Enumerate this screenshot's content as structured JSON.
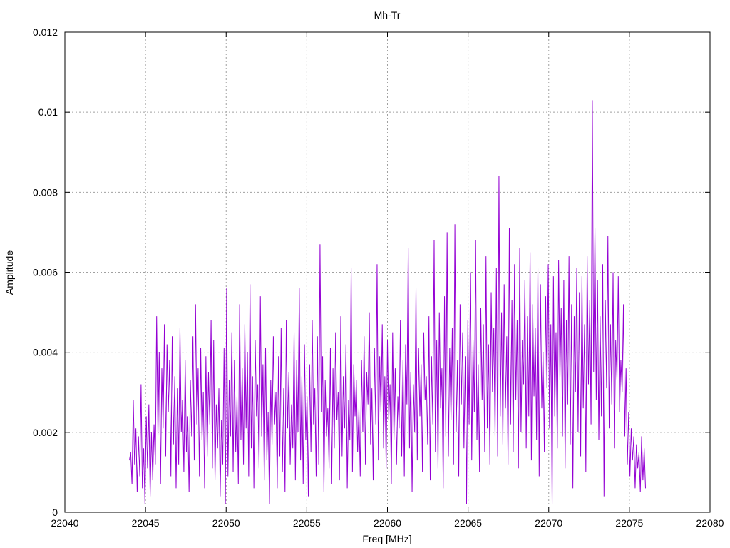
{
  "chart_data": {
    "type": "line",
    "title": "Mh-Tr",
    "xlabel": "Freq [MHz]",
    "ylabel": "Amplitude",
    "xlim": [
      22040,
      22080
    ],
    "ylim": [
      0,
      0.012
    ],
    "grid": true,
    "x_ticks": [
      "22040",
      "22045",
      "22050",
      "22055",
      "22060",
      "22065",
      "22070",
      "22075",
      "22080"
    ],
    "y_ticks": [
      "0",
      "0.002",
      "0.004",
      "0.006",
      "0.008",
      "0.01",
      "0.012"
    ],
    "series": [
      {
        "color": "#9400d3",
        "x_start": 22044.0,
        "x_end": 22076.0,
        "values": [
          0.0013,
          0.0015,
          0.0007,
          0.0028,
          0.0012,
          0.0021,
          0.0005,
          0.0019,
          0.0009,
          0.0032,
          0.0006,
          0.0016,
          0.0002,
          0.0024,
          0.0011,
          0.0027,
          0.0004,
          0.002,
          0.0008,
          0.0022,
          0.0012,
          0.0049,
          0.0019,
          0.004,
          0.0007,
          0.0036,
          0.0021,
          0.0047,
          0.0014,
          0.0042,
          0.0025,
          0.0038,
          0.0009,
          0.0044,
          0.0017,
          0.0034,
          0.0006,
          0.0031,
          0.0012,
          0.0046,
          0.002,
          0.0028,
          0.001,
          0.0038,
          0.0015,
          0.0024,
          0.0005,
          0.0033,
          0.0019,
          0.0044,
          0.0013,
          0.0052,
          0.0022,
          0.0036,
          0.0009,
          0.0041,
          0.0018,
          0.003,
          0.0006,
          0.0039,
          0.0014,
          0.0035,
          0.0022,
          0.0048,
          0.0011,
          0.0043,
          0.0008,
          0.0027,
          0.0016,
          0.0031,
          0.0004,
          0.0023,
          0.0012,
          0.0041,
          0.0002,
          0.0056,
          0.0009,
          0.0033,
          0.0019,
          0.0045,
          0.001,
          0.0038,
          0.0015,
          0.0029,
          0.0007,
          0.0052,
          0.0018,
          0.0036,
          0.0012,
          0.0047,
          0.0021,
          0.004,
          0.0009,
          0.0057,
          0.0016,
          0.0034,
          0.0006,
          0.0043,
          0.0024,
          0.0032,
          0.0011,
          0.0054,
          0.0019,
          0.0037,
          0.0008,
          0.0041,
          0.0013,
          0.0025,
          0.0002,
          0.0033,
          0.0017,
          0.0044,
          0.0022,
          0.003,
          0.0006,
          0.0039,
          0.0014,
          0.0046,
          0.001,
          0.0031,
          0.0005,
          0.0048,
          0.0021,
          0.0035,
          0.0012,
          0.0027,
          0.0016,
          0.0045,
          0.0008,
          0.0038,
          0.002,
          0.0056,
          0.0013,
          0.0034,
          0.0007,
          0.0042,
          0.0018,
          0.0029,
          0.0004,
          0.0037,
          0.0015,
          0.0048,
          0.0022,
          0.0031,
          0.0009,
          0.0044,
          0.0012,
          0.0067,
          0.0025,
          0.0039,
          0.0005,
          0.0033,
          0.0019,
          0.0026,
          0.0011,
          0.0041,
          0.0007,
          0.0036,
          0.0016,
          0.0045,
          0.0023,
          0.003,
          0.0008,
          0.0049,
          0.0014,
          0.0034,
          0.0021,
          0.0042,
          0.0006,
          0.0028,
          0.0018,
          0.0061,
          0.001,
          0.0037,
          0.0024,
          0.0033,
          0.0015,
          0.0026,
          0.0009,
          0.0038,
          0.002,
          0.0044,
          0.0012,
          0.0035,
          0.0027,
          0.005,
          0.0017,
          0.0031,
          0.0008,
          0.0041,
          0.0022,
          0.0062,
          0.0013,
          0.0039,
          0.0025,
          0.0047,
          0.0016,
          0.0034,
          0.0011,
          0.0043,
          0.0023,
          0.0032,
          0.0007,
          0.0045,
          0.0018,
          0.0036,
          0.0012,
          0.0029,
          0.0021,
          0.0048,
          0.0014,
          0.0038,
          0.0009,
          0.0042,
          0.0027,
          0.0066,
          0.0016,
          0.0035,
          0.0005,
          0.0032,
          0.002,
          0.0056,
          0.0013,
          0.0041,
          0.0024,
          0.0037,
          0.001,
          0.0045,
          0.0028,
          0.0034,
          0.0017,
          0.0049,
          0.0008,
          0.0039,
          0.0022,
          0.0068,
          0.0015,
          0.0043,
          0.0011,
          0.005,
          0.0026,
          0.0036,
          0.0006,
          0.0054,
          0.0019,
          0.007,
          0.0014,
          0.0041,
          0.0023,
          0.0046,
          0.0012,
          0.0072,
          0.002,
          0.0038,
          0.0009,
          0.0052,
          0.0027,
          0.0045,
          0.0016,
          0.0039,
          0.0002,
          0.0048,
          0.0022,
          0.006,
          0.0013,
          0.0043,
          0.0025,
          0.0068,
          0.0018,
          0.0037,
          0.001,
          0.0051,
          0.0028,
          0.0047,
          0.0015,
          0.0064,
          0.0021,
          0.0042,
          0.0012,
          0.0055,
          0.003,
          0.0046,
          0.0019,
          0.0061,
          0.0014,
          0.0084,
          0.0024,
          0.005,
          0.0017,
          0.0057,
          0.0026,
          0.0044,
          0.0012,
          0.0071,
          0.0022,
          0.0053,
          0.0015,
          0.0062,
          0.0028,
          0.0048,
          0.0011,
          0.0066,
          0.002,
          0.0043,
          0.0032,
          0.0058,
          0.0016,
          0.0049,
          0.0024,
          0.0065,
          0.0013,
          0.0052,
          0.0029,
          0.0046,
          0.0018,
          0.0061,
          0.0009,
          0.0057,
          0.0026,
          0.004,
          0.0015,
          0.0054,
          0.0031,
          0.0062,
          0.0021,
          0.0047,
          0.0002,
          0.0059,
          0.0024,
          0.0045,
          0.0016,
          0.0063,
          0.0033,
          0.0051,
          0.0019,
          0.0058,
          0.0011,
          0.0048,
          0.0027,
          0.0064,
          0.0017,
          0.0052,
          0.0006,
          0.0049,
          0.003,
          0.0061,
          0.002,
          0.0055,
          0.0014,
          0.0059,
          0.0026,
          0.0047,
          0.001,
          0.0064,
          0.0032,
          0.0053,
          0.0022,
          0.0103,
          0.0035,
          0.0071,
          0.0028,
          0.0058,
          0.0018,
          0.0049,
          0.0024,
          0.0062,
          0.0004,
          0.0053,
          0.0031,
          0.0069,
          0.0021,
          0.0047,
          0.0027,
          0.006,
          0.0016,
          0.0043,
          0.0033,
          0.0059,
          0.0025,
          0.0038,
          0.003,
          0.0052,
          0.0019,
          0.0036,
          0.0012,
          0.0025,
          0.0009,
          0.0021,
          0.0013,
          0.0019,
          0.0006,
          0.0017,
          0.0011,
          0.0015,
          0.0005,
          0.0019,
          0.0008,
          0.0016,
          0.0006
        ]
      }
    ]
  }
}
